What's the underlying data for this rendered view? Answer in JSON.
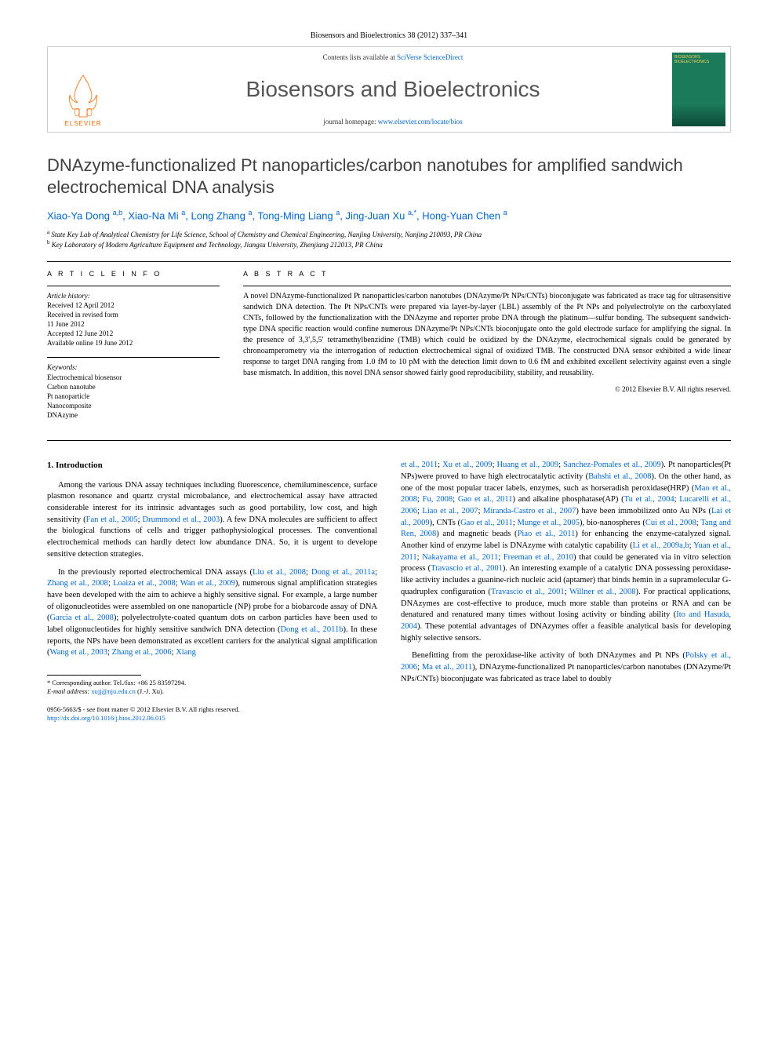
{
  "citation": "Biosensors and Bioelectronics 38 (2012) 337–341",
  "masthead": {
    "contents_prefix": "Contents lists available at ",
    "contents_link": "SciVerse ScienceDirect",
    "journal_name": "Biosensors and Bioelectronics",
    "homepage_prefix": "journal homepage: ",
    "homepage_link": "www.elsevier.com/locate/bios",
    "publisher": "ELSEVIER",
    "cover_title": "BIOSENSORS BIOELECTRONICS"
  },
  "article": {
    "title": "DNAzyme-functionalized Pt nanoparticles/carbon nanotubes for amplified sandwich electrochemical DNA analysis",
    "authors_html": "Xiao-Ya Dong <sup>a,b</sup>, Xiao-Na Mi <sup>a</sup>, Long Zhang <sup>a</sup>, Tong-Ming Liang <sup>a</sup>, Jing-Juan Xu <sup>a,*</sup>, Hong-Yuan Chen <sup>a</sup>",
    "affiliations": [
      {
        "sup": "a",
        "text": "State Key Lab of Analytical Chemistry for Life Science, School of Chemistry and Chemical Engineering, Nanjing University, Nanjing 210093, PR China"
      },
      {
        "sup": "b",
        "text": "Key Laboratory of Modern Agriculture Equipment and Technology, Jiangsu University, Zhenjiang 212013, PR China"
      }
    ]
  },
  "article_info": {
    "label": "A R T I C L E  I N F O",
    "history_title": "Article history:",
    "history": [
      "Received 12 April 2012",
      "Received in revised form",
      "11 June 2012",
      "Accepted 12 June 2012",
      "Available online 19 June 2012"
    ],
    "keywords_title": "Keywords:",
    "keywords": [
      "Electrochemical biosensor",
      "Carbon nanotube",
      "Pt nanoparticle",
      "Nanocomposite",
      "DNAzyme"
    ]
  },
  "abstract": {
    "label": "A B S T R A C T",
    "text": "A novel DNAzyme-functionalized Pt nanoparticles/carbon nanotubes (DNAzyme/Pt NPs/CNTs) bioconjugate was fabricated as trace tag for ultrasensitive sandwich DNA detection. The Pt NPs/CNTs were prepared via layer-by-layer (LBL) assembly of the Pt NPs and polyelectrolyte on the carboxylated CNTs, followed by the functionalization with the DNAzyme and reporter probe DNA through the platinum—sulfur bonding. The subsequent sandwich-type DNA specific reaction would confine numerous DNAzyme/Pt NPs/CNTs bioconjugate onto the gold electrode surface for amplifying the signal. In the presence of 3,3′,5,5′ tetramethylbenzidine (TMB) which could be oxidized by the DNAzyme, electrochemical signals could be generated by chronoamperometry via the interrogation of reduction electrochemical signal of oxidized TMB. The constructed DNA sensor exhibited a wide linear response to target DNA ranging from 1.0 fM to 10 pM with the detection limit down to 0.6 fM and exhibited excellent selectivity against even a single base mismatch. In addition, this novel DNA sensor showed fairly good reproducibility, stability, and reusability.",
    "copyright": "© 2012 Elsevier B.V. All rights reserved."
  },
  "body": {
    "heading": "1.  Introduction",
    "left": [
      {
        "parts": [
          {
            "t": "Among the various DNA assay techniques including fluorescence, chemiluminescence, surface plasmon resonance and quartz crystal microbalance, and electrochemical assay have attracted considerable interest for its intrinsic advantages such as good portability, low cost, and high sensitivity ("
          },
          {
            "t": "Fan et al., 2005",
            "link": true
          },
          {
            "t": "; "
          },
          {
            "t": "Drummond et al., 2003",
            "link": true
          },
          {
            "t": "). A few DNA molecules are sufficient to affect the biological functions of cells and trigger pathophysiological processes. The conventional electrochemical methods can hardly detect low abundance DNA. So, it is urgent to develope sensitive detection strategies."
          }
        ]
      },
      {
        "parts": [
          {
            "t": "In the previously reported electrochemical DNA assays ("
          },
          {
            "t": "Liu et al., 2008",
            "link": true
          },
          {
            "t": "; "
          },
          {
            "t": "Dong et al., 2011a",
            "link": true
          },
          {
            "t": "; "
          },
          {
            "t": "Zhang et al., 2008",
            "link": true
          },
          {
            "t": "; "
          },
          {
            "t": "Loaiza et al., 2008",
            "link": true
          },
          {
            "t": "; "
          },
          {
            "t": "Wan et al., 2009",
            "link": true
          },
          {
            "t": "), numerous signal amplification strategies have been developed with the aim to achieve a highly sensitive signal. For example, a large number of oligonucleotides were assembled on one nanoparticle (NP) probe for a biobarcode assay of DNA ("
          },
          {
            "t": "Garcia et al., 2008",
            "link": true
          },
          {
            "t": "); polyelectrolyte-coated quantum dots on carbon particles have been used to label oligonucleotides for highly sensitive sandwich DNA detection ("
          },
          {
            "t": "Dong et al., 2011b",
            "link": true
          },
          {
            "t": "). In these reports, the NPs have been demonstrated as excellent carriers for the analytical signal amplification ("
          },
          {
            "t": "Wang et al., 2003",
            "link": true
          },
          {
            "t": "; "
          },
          {
            "t": "Zhang et al., 2006",
            "link": true
          },
          {
            "t": "; "
          },
          {
            "t": "Xiang",
            "link": true
          }
        ]
      }
    ],
    "right": [
      {
        "parts": [
          {
            "t": "et al., 2011",
            "link": true
          },
          {
            "t": "; "
          },
          {
            "t": "Xu et al., 2009",
            "link": true
          },
          {
            "t": "; "
          },
          {
            "t": "Huang et al., 2009",
            "link": true
          },
          {
            "t": "; "
          },
          {
            "t": "Sanchez-Pomales et al., 2009",
            "link": true
          },
          {
            "t": "). Pt nanoparticles(Pt NPs)were proved to have high electrocatalytic activity ("
          },
          {
            "t": "Bahshi et al., 2008",
            "link": true
          },
          {
            "t": "). On the other hand, as one of the most popular tracer labels, enzymes, such as horseradish peroxidase(HRP) ("
          },
          {
            "t": "Mao et al., 2008",
            "link": true
          },
          {
            "t": "; "
          },
          {
            "t": "Fu, 2008",
            "link": true
          },
          {
            "t": "; "
          },
          {
            "t": "Gao et al., 2011",
            "link": true
          },
          {
            "t": ") and alkaline phosphatase(AP) ("
          },
          {
            "t": "Tu et al., 2004",
            "link": true
          },
          {
            "t": "; "
          },
          {
            "t": "Lucarelli et al., 2006",
            "link": true
          },
          {
            "t": "; "
          },
          {
            "t": "Liao et al., 2007",
            "link": true
          },
          {
            "t": "; "
          },
          {
            "t": "Miranda-Castro et al., 2007",
            "link": true
          },
          {
            "t": ") have been immobilized onto Au NPs ("
          },
          {
            "t": "Lai et al., 2009",
            "link": true
          },
          {
            "t": "), CNTs ("
          },
          {
            "t": "Gao et al., 2011",
            "link": true
          },
          {
            "t": "; "
          },
          {
            "t": "Munge et al., 2005",
            "link": true
          },
          {
            "t": "), bio-nanospheres ("
          },
          {
            "t": "Cui et al., 2008",
            "link": true
          },
          {
            "t": "; "
          },
          {
            "t": "Tang and Ren, 2008",
            "link": true
          },
          {
            "t": ") and magnetic beads ("
          },
          {
            "t": "Piao et al., 2011",
            "link": true
          },
          {
            "t": ") for enhancing the enzyme-catalyzed signal. Another kind of enzyme label is DNAzyme with catalytic capability ("
          },
          {
            "t": "Li et al., 2009a,b",
            "link": true
          },
          {
            "t": "; "
          },
          {
            "t": "Yuan et al., 2011",
            "link": true
          },
          {
            "t": "; "
          },
          {
            "t": "Nakayama et al., 2011",
            "link": true
          },
          {
            "t": "; "
          },
          {
            "t": "Freeman et al., 2010",
            "link": true
          },
          {
            "t": ") that could be generated via in vitro selection process ("
          },
          {
            "t": "Travascio et al., 2001",
            "link": true
          },
          {
            "t": "). An interesting example of a catalytic DNA possessing peroxidase-like activity includes a guanine-rich nucleic acid (aptamer) that binds hemin in a supramolecular G-quadruplex configuration ("
          },
          {
            "t": "Travascio et al., 2001",
            "link": true
          },
          {
            "t": "; "
          },
          {
            "t": "Willner et al., 2008",
            "link": true
          },
          {
            "t": "). For practical applications, DNAzymes are cost-effective to produce, much more stable than proteins or RNA and can be denatured and renatured many times without losing activity or binding ability ("
          },
          {
            "t": "Ito and Hasuda, 2004",
            "link": true
          },
          {
            "t": "). These potential advantages of DNAzymes offer a feasible analytical basis for developing highly selective sensors."
          }
        ]
      },
      {
        "parts": [
          {
            "t": "Benefitting from the peroxidase-like activity of both DNAzymes and Pt NPs ("
          },
          {
            "t": "Polsky et al., 2006",
            "link": true
          },
          {
            "t": "; "
          },
          {
            "t": "Ma et al., 2011",
            "link": true
          },
          {
            "t": "), DNAzyme-functionalized Pt nanoparticles/carbon nanotubes (DNAzyme/Pt NPs/CNTs) bioconjugate was fabricated as trace label to doubly"
          }
        ]
      }
    ]
  },
  "footnote": {
    "corr_label": "* Corresponding author. Tel./fax: ",
    "corr_value": "+86 25 83597294.",
    "email_label": "E-mail address: ",
    "email": "xujj@nju.edu.cn",
    "email_suffix": " (J.-J. Xu)."
  },
  "footer": {
    "line1": "0956-5663/$ - see front matter © 2012 Elsevier B.V. All rights reserved.",
    "line2": "http://dx.doi.org/10.1016/j.bios.2012.06.015"
  },
  "colors": {
    "link": "#0066cc",
    "elsevier": "#ff6600",
    "cover_bg": "#1b7a5a",
    "cover_title": "#f5d060",
    "title_gray": "#404040"
  }
}
